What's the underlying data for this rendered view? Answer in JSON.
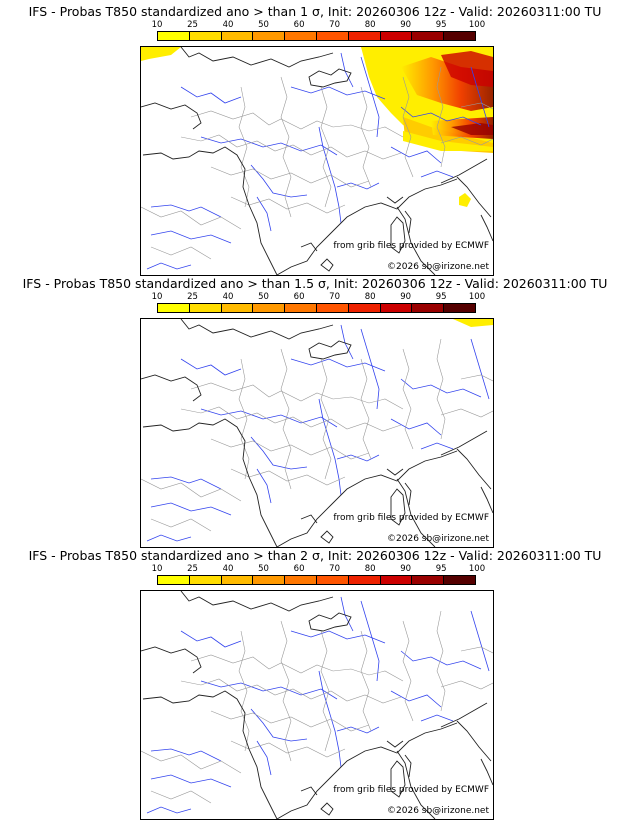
{
  "colorbar": {
    "ticks": [
      "10",
      "25",
      "40",
      "50",
      "60",
      "70",
      "80",
      "90",
      "95",
      "100"
    ],
    "colors": [
      "#ffff00",
      "#ffdd00",
      "#ffbb00",
      "#ff9900",
      "#ff7700",
      "#ff5500",
      "#ee2200",
      "#cc0000",
      "#990000",
      "#550000"
    ]
  },
  "credits": {
    "source": "from grib files provided by ECMWF",
    "copyright": "©2026 sb@irizone.net"
  },
  "panels": [
    {
      "title": "IFS - Probas T850  standardized ano > than 1 σ, Init: 20260306 12z - Valid: 20260311:00 TU",
      "threshold_sigma": 1
    },
    {
      "title": "IFS - Probas T850  standardized ano > than 1.5 σ, Init: 20260306 12z - Valid: 20260311:00 TU",
      "threshold_sigma": 1.5
    },
    {
      "title": "IFS - Probas T850  standardized ano > than 2 σ, Init: 20260306 12z - Valid: 20260311:00 TU",
      "threshold_sigma": 2
    }
  ]
}
